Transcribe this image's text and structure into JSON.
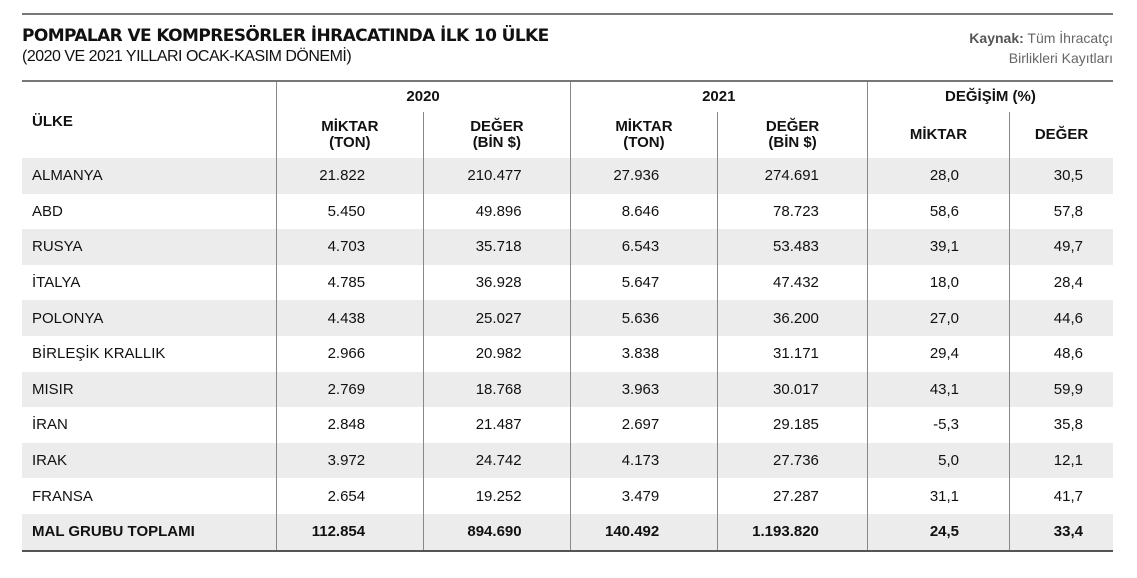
{
  "header": {
    "title": "POMPALAR VE KOMPRESÖRLER İHRACATINDA İLK 10 ÜLKE",
    "subtitle": "(2020 VE 2021 YILLARI OCAK-KASIM DÖNEMİ)",
    "source_label": "Kaynak:",
    "source_text_1": "Tüm İhracatçı",
    "source_text_2": "Birlikleri Kayıtları"
  },
  "chart_data": {
    "type": "table",
    "title": "POMPALAR VE KOMPRESÖRLER İHRACATINDA İLK 10 ÜLKE",
    "group_headers": [
      "2020",
      "2021",
      "DEĞİŞİM (%)"
    ],
    "country_header": "ÜLKE",
    "sub_headers": [
      [
        "MİKTAR",
        "(TON)"
      ],
      [
        "DEĞER",
        "(BİN $)"
      ],
      [
        "MİKTAR",
        "(TON)"
      ],
      [
        "DEĞER",
        "(BİN $)"
      ],
      [
        "MİKTAR",
        ""
      ],
      [
        "DEĞER",
        ""
      ]
    ],
    "rows": [
      [
        "ALMANYA",
        "21.822",
        "210.477",
        "27.936",
        "274.691",
        "28,0",
        "30,5"
      ],
      [
        "ABD",
        "5.450",
        "49.896",
        "8.646",
        "78.723",
        "58,6",
        "57,8"
      ],
      [
        "RUSYA",
        "4.703",
        "35.718",
        "6.543",
        "53.483",
        "39,1",
        "49,7"
      ],
      [
        "İTALYA",
        "4.785",
        "36.928",
        "5.647",
        "47.432",
        "18,0",
        "28,4"
      ],
      [
        "POLONYA",
        "4.438",
        "25.027",
        "5.636",
        "36.200",
        "27,0",
        "44,6"
      ],
      [
        "BİRLEŞİK KRALLIK",
        "2.966",
        "20.982",
        "3.838",
        "31.171",
        "29,4",
        "48,6"
      ],
      [
        "MISIR",
        "2.769",
        "18.768",
        "3.963",
        "30.017",
        "43,1",
        "59,9"
      ],
      [
        "İRAN",
        "2.848",
        "21.487",
        "2.697",
        "29.185",
        "-5,3",
        "35,8"
      ],
      [
        "IRAK",
        "3.972",
        "24.742",
        "4.173",
        "27.736",
        "5,0",
        "12,1"
      ],
      [
        "FRANSA",
        "2.654",
        "19.252",
        "3.479",
        "27.287",
        "31,1",
        "41,7"
      ],
      [
        "MAL GRUBU TOPLAMI",
        "112.854",
        "894.690",
        "140.492",
        "1.193.820",
        "24,5",
        "33,4"
      ]
    ]
  }
}
